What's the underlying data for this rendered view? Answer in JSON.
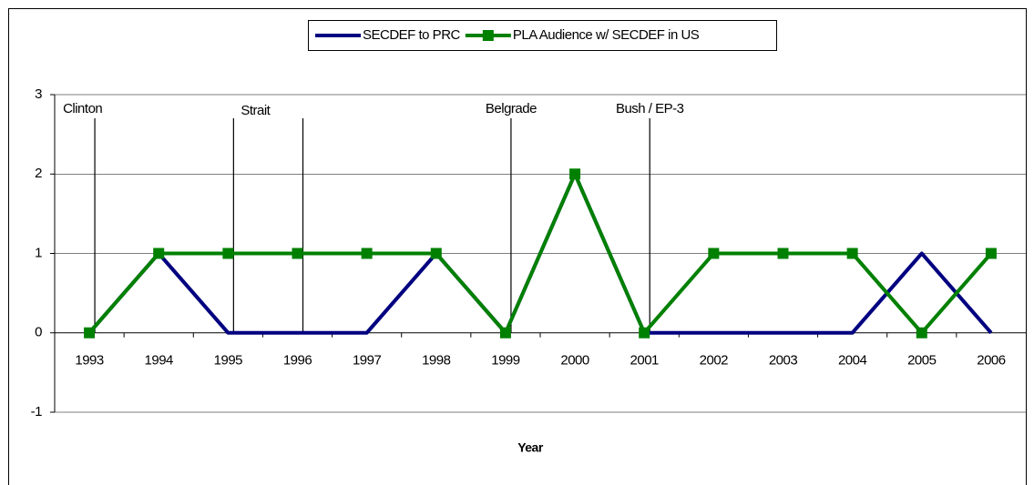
{
  "chart_data": {
    "type": "line",
    "categories": [
      "1993",
      "1994",
      "1995",
      "1996",
      "1997",
      "1998",
      "1999",
      "2000",
      "2001",
      "2002",
      "2003",
      "2004",
      "2005",
      "2006"
    ],
    "series": [
      {
        "name": "SECDEF to PRC",
        "color": "#000080",
        "values": [
          0,
          1,
          0,
          0,
          0,
          1,
          0,
          2,
          0,
          0,
          0,
          0,
          1,
          0
        ]
      },
      {
        "name": "PLA Audience w/ SECDEF in US",
        "color": "#008000",
        "marker": "square",
        "values": [
          0,
          1,
          1,
          1,
          1,
          1,
          0,
          2,
          0,
          1,
          1,
          1,
          0,
          1
        ]
      }
    ],
    "x_label": "Year",
    "ylim": [
      -1,
      3
    ],
    "yticks": [
      -1,
      0,
      1,
      2,
      3
    ],
    "grid": true,
    "legend": "top",
    "event_lines": [
      "1993",
      "1995",
      "1996",
      "1999",
      "2001"
    ],
    "annotations": [
      {
        "category": "1993",
        "text": "Clinton"
      },
      {
        "category": "1995",
        "text": "Strait"
      },
      {
        "category": "1999",
        "text": "Belgrade"
      },
      {
        "category": "2001",
        "text": "Bush / EP-3"
      }
    ]
  }
}
